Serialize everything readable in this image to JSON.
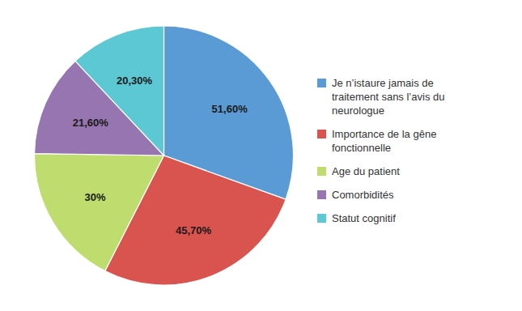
{
  "chart_data": {
    "type": "pie",
    "categories": [
      "Je n’istaure jamais de\ntraitement sans l’avis du\nneurologue",
      "Importance de la gêne\nfonctionnelle",
      "Age du patient",
      "Comorbidités",
      "Statut cognitif"
    ],
    "values": [
      51.6,
      45.7,
      30.0,
      21.6,
      20.3
    ],
    "value_labels": [
      "51,60%",
      "45,70%",
      "30%",
      "21,60%",
      "20,30%"
    ],
    "colors": [
      "#5B9BD5",
      "#D9534F",
      "#BFDD6E",
      "#9675B0",
      "#5BC8D4"
    ],
    "data_labels": true,
    "legend": "right"
  }
}
